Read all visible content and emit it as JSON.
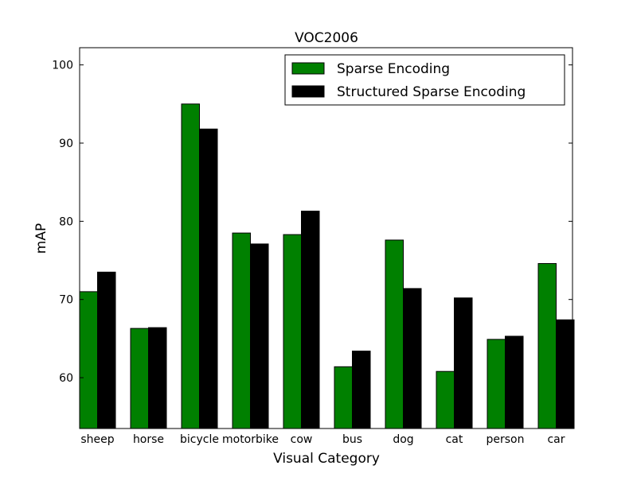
{
  "chart_data": {
    "type": "bar",
    "title": "VOC2006",
    "xlabel": "Visual Category",
    "ylabel": "mAP",
    "ylim": [
      53.5,
      102.2
    ],
    "yticks": [
      60,
      70,
      80,
      90,
      100
    ],
    "grid": false,
    "legend_position": "top-right",
    "categories": [
      "sheep",
      "horse",
      "bicycle",
      "motorbike",
      "cow",
      "bus",
      "dog",
      "cat",
      "person",
      "car"
    ],
    "series": [
      {
        "name": "Sparse Encoding",
        "color": "#008000",
        "values": [
          71.0,
          66.3,
          95.0,
          78.5,
          78.3,
          61.4,
          77.6,
          60.8,
          64.9,
          74.6
        ]
      },
      {
        "name": "Structured Sparse Encoding",
        "color": "#000000",
        "values": [
          73.5,
          66.4,
          91.8,
          77.1,
          81.3,
          63.4,
          71.4,
          70.2,
          65.3,
          67.4
        ]
      }
    ]
  }
}
